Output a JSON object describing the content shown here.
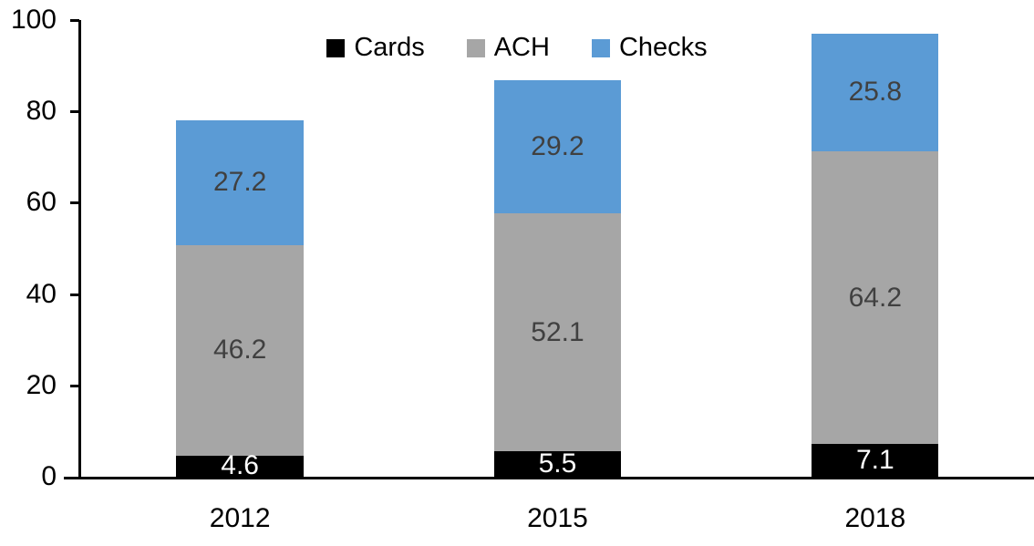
{
  "chart_data": {
    "type": "bar",
    "stacked": true,
    "title": "",
    "categories": [
      "2012",
      "2015",
      "2018"
    ],
    "series": [
      {
        "name": "Cards",
        "color": "#000000",
        "label_color": "#ffffff",
        "values": [
          4.6,
          5.5,
          7.1
        ]
      },
      {
        "name": "ACH",
        "color": "#a6a6a6",
        "label_color": "#404040",
        "values": [
          46.2,
          52.1,
          64.2
        ]
      },
      {
        "name": "Checks",
        "color": "#5b9bd5",
        "label_color": "#404040",
        "values": [
          27.2,
          29.2,
          25.8
        ]
      }
    ],
    "totals": [
      78.0,
      86.8,
      97.1
    ],
    "xlabel": "",
    "ylabel": "",
    "ylim": [
      0,
      100
    ],
    "yticks": [
      0,
      20,
      40,
      60,
      80,
      100
    ],
    "grid": false,
    "legend_position": "top",
    "axis_color": "#000000",
    "background_color": "#ffffff"
  }
}
